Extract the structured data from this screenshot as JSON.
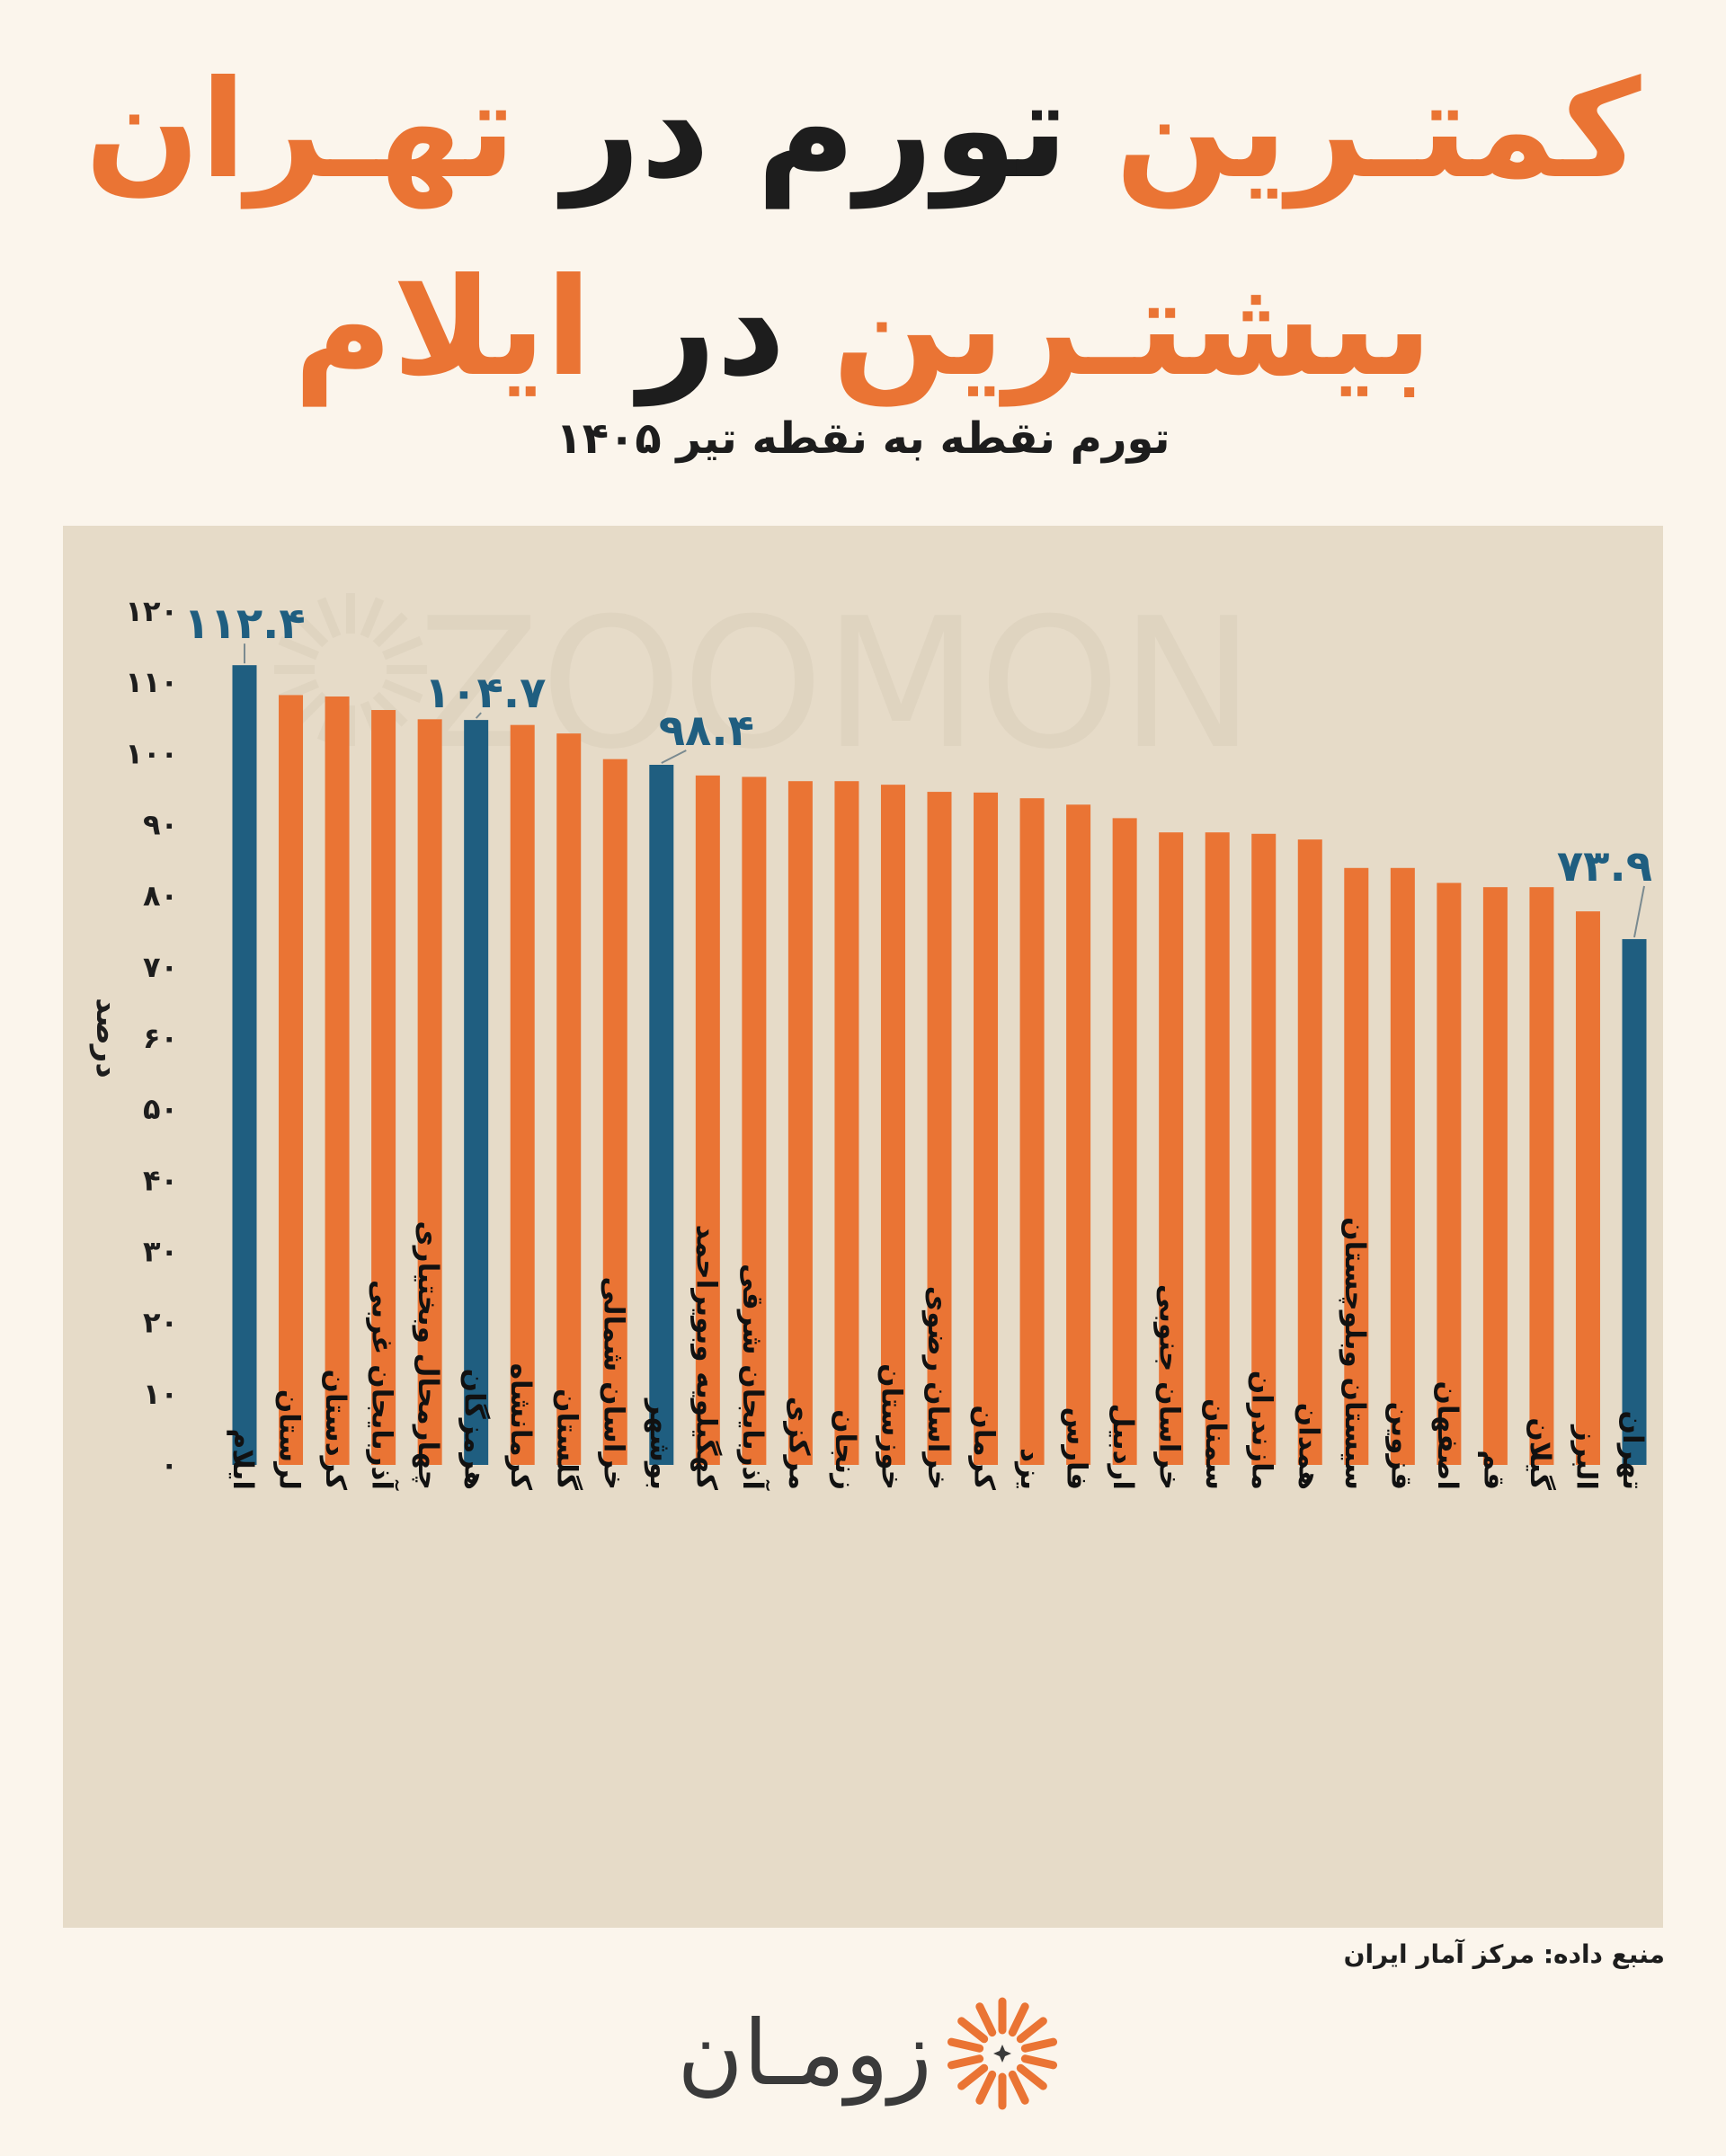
{
  "title": {
    "line1": {
      "part1": "کمتـرین",
      "part2": "تورم در",
      "part3": "تهـران"
    },
    "line2": {
      "part1": "بیشتـرین",
      "part2": "در",
      "part3": "ایلام"
    }
  },
  "subtitle": "تورم نقطه به نقطه تیر ۱۴۰۵",
  "source": "منبع داده: مرکز آمار ایران",
  "brand": {
    "name": "زومـان",
    "watermark": "ZOOMON",
    "icon": "sunburst-logo-icon"
  },
  "colors": {
    "orange": "#ea7434",
    "blue": "#1f5e80",
    "panel": "#e6dbc8",
    "background": "#fbf5ec"
  },
  "chart_data": {
    "type": "bar",
    "ylabel": "درصد",
    "ylim": [
      0,
      120
    ],
    "yticks": [
      "۰",
      "۱۰",
      "۲۰",
      "۳۰",
      "۴۰",
      "۵۰",
      "۶۰",
      "۷۰",
      "۸۰",
      "۹۰",
      "۱۰۰",
      "۱۱۰",
      "۱۲۰"
    ],
    "grid": false,
    "categories": [
      "ایلام",
      "لرستان",
      "کردستان",
      "آذربایجان غربی",
      "چهارمحال وبختیاری",
      "هرمزگان",
      "کرمانشاه",
      "گلستان",
      "خراسان شمالی",
      "بوشهر",
      "کهگیلویه وبویراحمد",
      "آذربایجان شرقی",
      "مرکزی",
      "زنجان",
      "خوزستان",
      "خراسان رضوی",
      "کرمان",
      "یزد",
      "فارس",
      "اردبیل",
      "خراسان جنوبی",
      "سمنان",
      "مازندران",
      "همدان",
      "سیستان وبلوچستان",
      "قزوین",
      "اصفهان",
      "قم",
      "گیلان",
      "البرز",
      "تهران"
    ],
    "values": [
      112.4,
      108.2,
      108.0,
      106.1,
      104.8,
      104.7,
      104.0,
      102.8,
      99.2,
      98.4,
      96.9,
      96.7,
      96.1,
      96.1,
      95.6,
      94.6,
      94.5,
      93.7,
      92.8,
      90.9,
      88.9,
      88.9,
      88.7,
      87.9,
      83.9,
      83.9,
      81.8,
      81.2,
      81.2,
      77.8,
      73.9
    ],
    "highlighted": [
      "ایلام",
      "هرمزگان",
      "بوشهر",
      "تهران"
    ],
    "annotations": [
      {
        "category": "ایلام",
        "label": "۱۱۲.۴"
      },
      {
        "category": "هرمزگان",
        "label": "۱۰۴.۷"
      },
      {
        "category": "بوشهر",
        "label": "۹۸.۴"
      },
      {
        "category": "تهران",
        "label": "۷۳.۹"
      }
    ]
  }
}
